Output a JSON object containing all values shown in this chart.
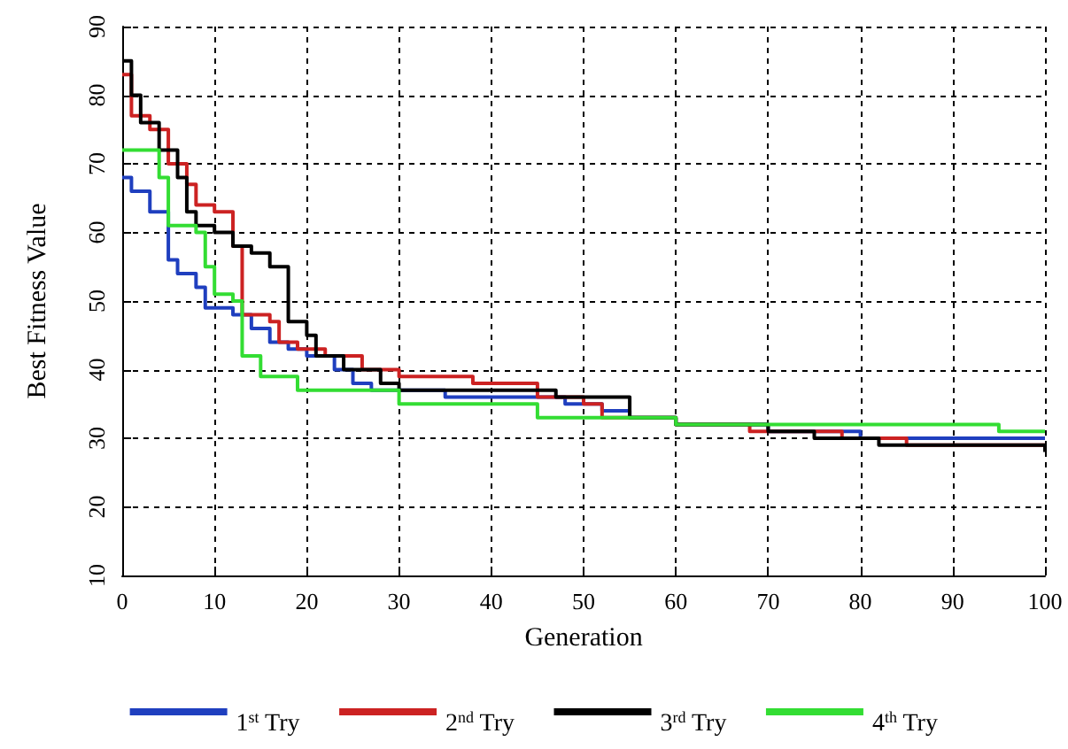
{
  "chart_data": {
    "type": "step",
    "xlabel": "Generation",
    "ylabel": "Best Fitness Value",
    "xlim": [
      0,
      100
    ],
    "xticks": [
      0,
      10,
      20,
      30,
      40,
      50,
      60,
      70,
      80,
      90,
      100
    ],
    "ylim": [
      10,
      90
    ],
    "yticks": [
      10,
      20,
      30,
      40,
      50,
      60,
      70,
      80,
      90
    ],
    "grid": true,
    "legend": "bottom",
    "marker": "none",
    "line_style": "solid",
    "series": [
      {
        "name": "1$^{st}$ Try",
        "color": "#1f3fbf",
        "x": [
          0,
          1,
          3,
          5,
          6,
          8,
          9,
          12,
          14,
          16,
          18,
          20,
          23,
          25,
          27,
          30,
          35,
          44,
          48,
          50,
          52,
          55,
          60,
          70,
          80,
          100
        ],
        "values": [
          68,
          66,
          63,
          56,
          54,
          52,
          49,
          48,
          46,
          44,
          43,
          42,
          40,
          38,
          37,
          37,
          36,
          36,
          35,
          35,
          34,
          33,
          32,
          31,
          30,
          30
        ]
      },
      {
        "name": "2$^{nd}$ Try",
        "color": "#cc2222",
        "x": [
          0,
          1,
          3,
          5,
          7,
          8,
          10,
          12,
          13,
          16,
          17,
          19,
          22,
          26,
          30,
          38,
          45,
          50,
          52,
          60,
          68,
          78,
          85,
          100
        ],
        "values": [
          83,
          77,
          75,
          70,
          67,
          64,
          63,
          58,
          48,
          47,
          44,
          43,
          42,
          40,
          39,
          38,
          36,
          35,
          33,
          32,
          31,
          30,
          29,
          29
        ]
      },
      {
        "name": "3$^{rd}$ Try",
        "color": "#000000",
        "x": [
          0,
          1,
          2,
          4,
          6,
          7,
          8,
          10,
          12,
          14,
          16,
          18,
          20,
          21,
          24,
          28,
          30,
          42,
          47,
          55,
          60,
          70,
          75,
          82,
          90,
          100
        ],
        "values": [
          85,
          80,
          76,
          72,
          68,
          63,
          61,
          60,
          58,
          57,
          55,
          47,
          45,
          42,
          40,
          38,
          37,
          37,
          36,
          33,
          32,
          31,
          30,
          29,
          29,
          28
        ]
      },
      {
        "name": "4$^{th}$ Try",
        "color": "#33dd33",
        "x": [
          0,
          2,
          4,
          5,
          8,
          9,
          10,
          12,
          13,
          15,
          19,
          25,
          30,
          42,
          45,
          55,
          60,
          80,
          95,
          100
        ],
        "values": [
          72,
          72,
          68,
          61,
          60,
          55,
          51,
          50,
          42,
          39,
          37,
          37,
          35,
          35,
          33,
          33,
          32,
          32,
          31,
          31
        ]
      }
    ]
  }
}
